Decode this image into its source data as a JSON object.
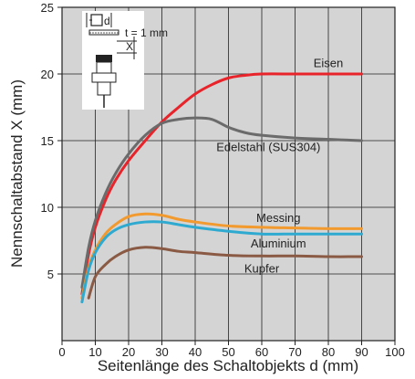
{
  "chart_data": {
    "type": "line",
    "xlabel": "Seitenlänge des Schaltobjekts d (mm)",
    "ylabel": "Nennschaltabstand X (mm)",
    "xlim": [
      0,
      100
    ],
    "ylim": [
      0,
      25
    ],
    "x_ticks": [
      "0",
      "10",
      "20",
      "30",
      "40",
      "50",
      "60",
      "70",
      "80",
      "90",
      "100"
    ],
    "y_ticks": [
      "5",
      "10",
      "15",
      "20",
      "25"
    ],
    "grid": true,
    "background_color": "#d4d4d4",
    "series": [
      {
        "name": "Eisen",
        "color": "#e8232a",
        "x": [
          6,
          8,
          10,
          13,
          16,
          20,
          25,
          30,
          35,
          40,
          45,
          50,
          55,
          60,
          70,
          80,
          90
        ],
        "y": [
          3.5,
          6.5,
          8.5,
          10.5,
          12,
          13.5,
          15,
          16.4,
          17.5,
          18.5,
          19.2,
          19.7,
          19.9,
          20,
          20,
          20,
          20
        ]
      },
      {
        "name": "Edelstahl (SUS304)",
        "color": "#6b6b6b",
        "x": [
          6,
          8,
          10,
          13,
          16,
          20,
          25,
          30,
          35,
          40,
          45,
          50,
          55,
          60,
          70,
          80,
          90
        ],
        "y": [
          4,
          7,
          9,
          11,
          12.5,
          14,
          15.4,
          16.3,
          16.6,
          16.7,
          16.6,
          16,
          15.6,
          15.4,
          15.2,
          15.1,
          15
        ]
      },
      {
        "name": "Messing",
        "color": "#f29a2e",
        "x": [
          6,
          8,
          10,
          13,
          16,
          20,
          25,
          30,
          35,
          40,
          50,
          60,
          70,
          80,
          90
        ],
        "y": [
          3.2,
          5.5,
          6.8,
          8,
          8.7,
          9.3,
          9.5,
          9.4,
          9.1,
          8.9,
          8.6,
          8.5,
          8.45,
          8.4,
          8.4
        ]
      },
      {
        "name": "Aluminium",
        "color": "#2eaad1",
        "x": [
          6,
          8,
          10,
          13,
          16,
          20,
          25,
          30,
          35,
          40,
          50,
          60,
          70,
          80,
          90
        ],
        "y": [
          2.9,
          5.3,
          6.6,
          7.7,
          8.3,
          8.7,
          8.9,
          8.9,
          8.7,
          8.5,
          8.2,
          8,
          8,
          8,
          8
        ]
      },
      {
        "name": "Kupfer",
        "color": "#8a5a44",
        "x": [
          8,
          10,
          13,
          16,
          20,
          25,
          30,
          35,
          40,
          50,
          60,
          70,
          80,
          90
        ],
        "y": [
          3.2,
          4.8,
          5.7,
          6.3,
          6.8,
          7.0,
          6.9,
          6.7,
          6.6,
          6.4,
          6.35,
          6.35,
          6.3,
          6.3
        ]
      }
    ]
  },
  "inset": {
    "d_label": "d",
    "x_label": "X",
    "t_label": "t = 1 mm"
  }
}
